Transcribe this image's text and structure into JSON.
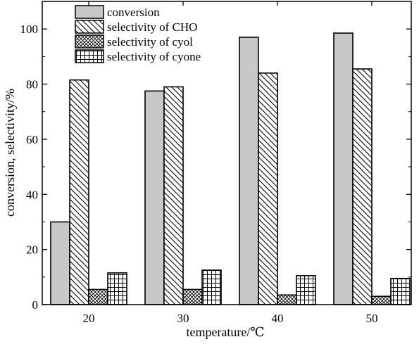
{
  "chart_data": {
    "type": "bar",
    "title": "",
    "xlabel": "temperature/℃",
    "ylabel": "conversion, selectivity/%",
    "categories": [
      "20",
      "30",
      "40",
      "50"
    ],
    "ylim": [
      0,
      110
    ],
    "yticks": [
      0,
      20,
      40,
      60,
      80,
      100
    ],
    "grid": false,
    "legend_position": "top-left",
    "series": [
      {
        "name": "conversion",
        "pattern": "solid-gray",
        "values": [
          30,
          77.5,
          97,
          98.5
        ]
      },
      {
        "name": "selectivity of CHO",
        "pattern": "diagonal-hatch",
        "values": [
          81.5,
          79,
          84,
          85.5
        ]
      },
      {
        "name": "selectivity of cyol",
        "pattern": "crosshatch",
        "values": [
          5.5,
          5.5,
          3.5,
          3
        ]
      },
      {
        "name": "selectivity of cyone",
        "pattern": "grid",
        "values": [
          11.5,
          12.5,
          10.5,
          9.5
        ]
      }
    ]
  }
}
